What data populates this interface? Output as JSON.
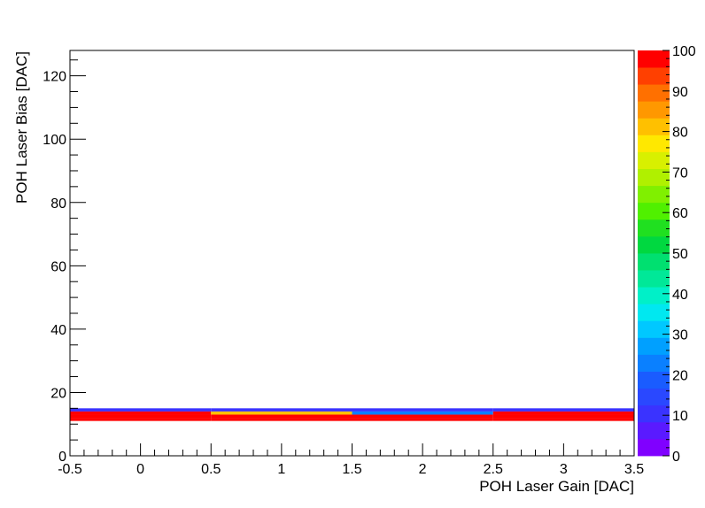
{
  "chart_data": {
    "type": "heatmap",
    "title": "",
    "xlabel": "POH Laser Gain [DAC]",
    "ylabel": "POH Laser Bias [DAC]",
    "xlim": [
      -0.5,
      3.5
    ],
    "ylim": [
      0,
      128
    ],
    "zlim": [
      0,
      100
    ],
    "x_ticks": [
      "-0.5",
      "0",
      "0.5",
      "1",
      "1.5",
      "2",
      "2.5",
      "3",
      "3.5"
    ],
    "y_ticks": [
      "0",
      "20",
      "40",
      "60",
      "80",
      "100",
      "120"
    ],
    "z_ticks": [
      "0",
      "10",
      "20",
      "30",
      "40",
      "50",
      "60",
      "70",
      "80",
      "90",
      "100"
    ],
    "grid": false,
    "colorbar": "right",
    "palette": [
      "#8000ff",
      "#5a1aff",
      "#3a33ff",
      "#2a48ff",
      "#1a5cff",
      "#0a80ff",
      "#00a0ff",
      "#00c8ff",
      "#00e8f0",
      "#00f0c8",
      "#00e898",
      "#00e070",
      "#00d840",
      "#20e020",
      "#50f000",
      "#80f000",
      "#b0f000",
      "#d8f000",
      "#ffe800",
      "#ffc000",
      "#ff9800",
      "#ff7000",
      "#ff4000",
      "#ff0000"
    ],
    "cells": [
      {
        "x": 0,
        "y": 11,
        "z": 100
      },
      {
        "x": 0,
        "y": 12,
        "z": 100
      },
      {
        "x": 0,
        "y": 13,
        "z": 100
      },
      {
        "x": 0,
        "y": 14,
        "z": 12
      },
      {
        "x": 1,
        "y": 11,
        "z": 100
      },
      {
        "x": 1,
        "y": 12,
        "z": 100
      },
      {
        "x": 1,
        "y": 13,
        "z": 80
      },
      {
        "x": 1,
        "y": 14,
        "z": 12
      },
      {
        "x": 2,
        "y": 11,
        "z": 100
      },
      {
        "x": 2,
        "y": 12,
        "z": 100
      },
      {
        "x": 2,
        "y": 13,
        "z": 22
      },
      {
        "x": 2,
        "y": 14,
        "z": 12
      },
      {
        "x": 3,
        "y": 11,
        "z": 100
      },
      {
        "x": 3,
        "y": 12,
        "z": 100
      },
      {
        "x": 3,
        "y": 13,
        "z": 100
      },
      {
        "x": 3,
        "y": 14,
        "z": 12
      }
    ]
  }
}
